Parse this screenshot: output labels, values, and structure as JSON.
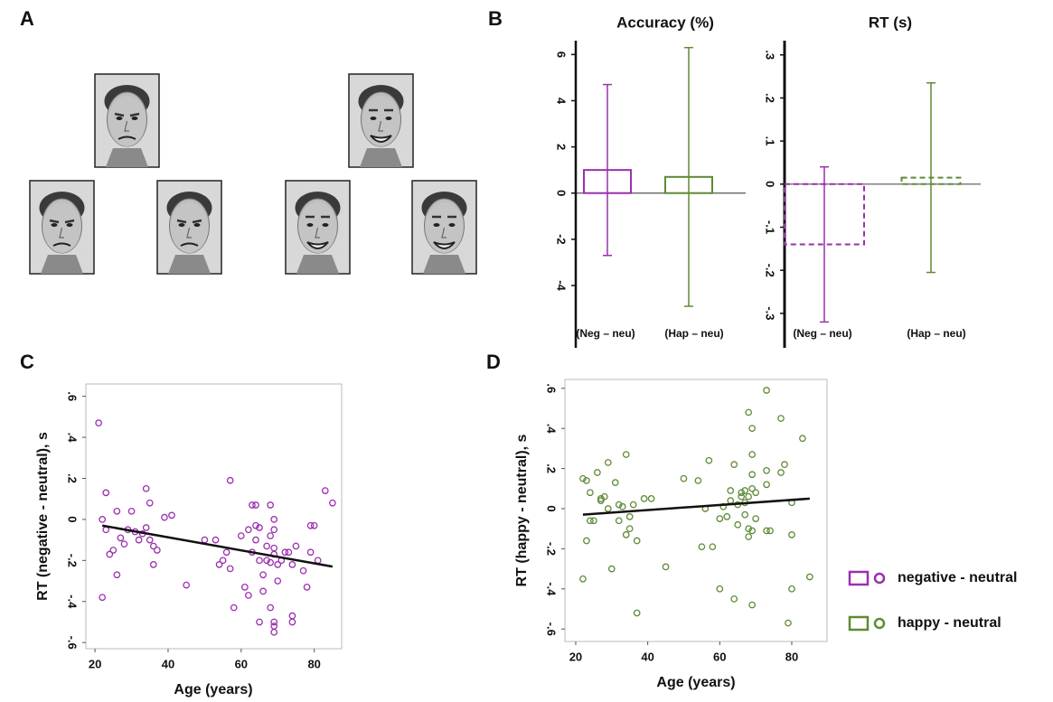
{
  "panels": [
    "A",
    "B",
    "C",
    "D"
  ],
  "chart_data": [
    {
      "type": "bar",
      "title": "Accuracy (%)",
      "categories": [
        "(Neg – neu)",
        "(Hap – neu)"
      ],
      "values": [
        1.0,
        0.7
      ],
      "errors": [
        3.7,
        5.6
      ],
      "colors": [
        "#9b2fae",
        "#5f8a35"
      ],
      "dashed": false,
      "ylim": [
        -6.7,
        6.6
      ],
      "yticks": [
        -4,
        -2,
        0,
        2,
        4,
        6
      ]
    },
    {
      "type": "bar",
      "title": "RT (s)",
      "categories": [
        "(Neg – neu)",
        "(Hap – neu)"
      ],
      "values": [
        -0.14,
        0.015
      ],
      "errors": [
        0.18,
        0.22
      ],
      "colors": [
        "#9b2fae",
        "#5f8a35"
      ],
      "dashed": true,
      "ylim": [
        -0.38,
        0.333
      ],
      "yticks": [
        {
          "value": -0.3,
          "label": "-.3"
        },
        {
          "value": -0.2,
          "label": "-.2"
        },
        {
          "value": -0.1,
          "label": "-.1"
        },
        0,
        {
          "value": 0.1,
          "label": ".1"
        },
        {
          "value": 0.2,
          "label": ".2"
        },
        {
          "value": 0.3,
          "label": ".3"
        }
      ]
    },
    {
      "type": "scatter",
      "xlabel": "Age (years)",
      "ylabel": "RT (negative - neutral), s",
      "series": [
        {
          "name": "negative - neutral",
          "color": "#9b2fae",
          "x": [
            21,
            22,
            22,
            23,
            23,
            24,
            25,
            26,
            26,
            27,
            28,
            29,
            30,
            31,
            32,
            33,
            34,
            34,
            35,
            35,
            36,
            36,
            37,
            39,
            41,
            45,
            50,
            53,
            54,
            55,
            56,
            57,
            57,
            58,
            60,
            61,
            62,
            62,
            63,
            63,
            64,
            64,
            64,
            65,
            65,
            65,
            66,
            66,
            67,
            67,
            68,
            68,
            68,
            68,
            69,
            69,
            69,
            69,
            69,
            69,
            69,
            70,
            70,
            71,
            72,
            73,
            74,
            74,
            74,
            75,
            77,
            78,
            79,
            79,
            80,
            81,
            83,
            85
          ],
          "values": [
            0.47,
            -0.38,
            0.0,
            0.13,
            -0.05,
            -0.17,
            -0.15,
            0.04,
            -0.27,
            -0.09,
            -0.12,
            -0.05,
            0.04,
            -0.06,
            -0.1,
            -0.07,
            0.15,
            -0.04,
            0.08,
            -0.1,
            -0.13,
            -0.22,
            -0.15,
            0.01,
            0.02,
            -0.32,
            -0.1,
            -0.1,
            -0.22,
            -0.2,
            -0.16,
            0.19,
            -0.24,
            -0.43,
            -0.08,
            -0.33,
            -0.05,
            -0.37,
            0.07,
            -0.16,
            0.07,
            -0.03,
            -0.1,
            -0.2,
            -0.5,
            -0.04,
            -0.27,
            -0.35,
            -0.13,
            -0.2,
            -0.08,
            0.07,
            -0.21,
            -0.43,
            -0.17,
            -0.14,
            -0.5,
            -0.52,
            -0.55,
            0.0,
            -0.05,
            -0.22,
            -0.3,
            -0.2,
            -0.16,
            -0.16,
            -0.47,
            -0.5,
            -0.22,
            -0.13,
            -0.25,
            -0.33,
            -0.16,
            -0.03,
            -0.03,
            -0.2,
            0.14,
            0.08
          ]
        }
      ],
      "trend": {
        "x": [
          22,
          85
        ],
        "values": [
          -0.03,
          -0.23
        ]
      },
      "xlim": [
        17.5,
        87.5
      ],
      "ylim": [
        -0.63,
        0.66
      ],
      "xticks": [
        20,
        40,
        60,
        80
      ],
      "yticks": [
        {
          "value": -0.6,
          "label": "-.6"
        },
        {
          "value": -0.4,
          "label": "-.4"
        },
        {
          "value": -0.2,
          "label": "-.2"
        },
        0,
        {
          "value": 0.2,
          "label": ".2"
        },
        {
          "value": 0.4,
          "label": ".4"
        },
        {
          "value": 0.6,
          "label": ".6"
        }
      ]
    },
    {
      "type": "scatter",
      "xlabel": "Age (years)",
      "ylabel": "RT (happy - neutral), s",
      "series": [
        {
          "name": "happy - neutral",
          "color": "#5f8a35",
          "x": [
            22,
            22,
            23,
            23,
            24,
            24,
            25,
            26,
            27,
            27,
            28,
            29,
            29,
            30,
            31,
            32,
            32,
            33,
            34,
            34,
            35,
            35,
            36,
            37,
            37,
            39,
            41,
            45,
            50,
            54,
            55,
            56,
            57,
            58,
            60,
            60,
            61,
            62,
            63,
            63,
            64,
            64,
            65,
            65,
            66,
            66,
            67,
            67,
            67,
            68,
            68,
            68,
            68,
            69,
            69,
            69,
            69,
            69,
            69,
            70,
            70,
            73,
            73,
            73,
            73,
            74,
            77,
            77,
            78,
            79,
            80,
            80,
            80,
            83,
            85
          ],
          "values": [
            0.15,
            -0.35,
            0.14,
            -0.16,
            -0.06,
            0.08,
            -0.06,
            0.18,
            0.05,
            0.04,
            0.06,
            0.23,
            0.0,
            -0.3,
            0.13,
            -0.06,
            0.02,
            0.01,
            0.27,
            -0.13,
            -0.04,
            -0.1,
            0.02,
            -0.16,
            -0.52,
            0.05,
            0.05,
            -0.29,
            0.15,
            0.14,
            -0.19,
            0.0,
            0.24,
            -0.19,
            -0.4,
            -0.05,
            0.01,
            -0.04,
            0.04,
            0.09,
            -0.45,
            0.22,
            0.02,
            -0.08,
            0.06,
            0.08,
            0.09,
            -0.03,
            0.03,
            0.48,
            0.06,
            -0.1,
            -0.14,
            0.4,
            0.27,
            0.17,
            0.1,
            -0.11,
            -0.48,
            0.08,
            -0.05,
            0.59,
            0.19,
            0.12,
            -0.11,
            -0.11,
            0.45,
            0.18,
            0.22,
            -0.57,
            -0.4,
            0.03,
            -0.13,
            0.35,
            -0.34
          ]
        }
      ],
      "trend": {
        "x": [
          22,
          85
        ],
        "values": [
          -0.03,
          0.05
        ]
      },
      "xlim": [
        17,
        89.8
      ],
      "ylim": [
        -0.662,
        0.644
      ],
      "xticks": [
        20,
        40,
        60,
        80
      ],
      "yticks": [
        {
          "value": -0.6,
          "label": "-.6"
        },
        {
          "value": -0.4,
          "label": "-.4"
        },
        {
          "value": -0.2,
          "label": "-.2"
        },
        0,
        {
          "value": 0.2,
          "label": ".2"
        },
        {
          "value": 0.4,
          "label": ".4"
        },
        {
          "value": 0.6,
          "label": ".6"
        }
      ]
    }
  ]
}
